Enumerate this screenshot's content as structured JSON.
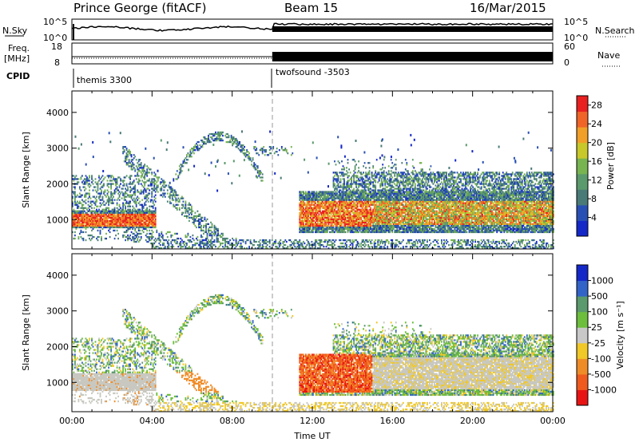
{
  "header": {
    "title": "Prince George (fitACF)",
    "beam": "Beam 15",
    "date": "16/Mar/2015"
  },
  "strip_labels": {
    "nsky": "N.Sky",
    "nsky_hi": "10^5",
    "nsky_lo": "10^0",
    "nsearch": "N.Search",
    "nsearch_hi": "10^5",
    "nsearch_lo": "10^0",
    "freq_line1": "Freq.",
    "freq_line2": "[MHz]",
    "freq_hi": "18",
    "freq_lo": "8",
    "nave": "Nave",
    "nave_hi": "60",
    "nave_lo": "0",
    "cpid": "CPID"
  },
  "cpid_segments": [
    {
      "label": "themis 3300",
      "start": "00:00"
    },
    {
      "label": "twofsound -3503",
      "start": "10:00"
    }
  ],
  "colors": {
    "power_scale": [
      "#1428c8",
      "#2850b4",
      "#4a7a78",
      "#5a9a6c",
      "#78b450",
      "#c8c82a",
      "#f0a028",
      "#f06428",
      "#e82020"
    ],
    "velocity_scale": [
      "#1428c8",
      "#3264c8",
      "#5a9a6c",
      "#6cbe3c",
      "#c8c8c8",
      "#f0c828",
      "#f08c28",
      "#f05a1e",
      "#e81414"
    ],
    "data_gray": "#c8c8c0"
  },
  "chart_data": [
    {
      "type": "heatmap",
      "name": "power",
      "xlabel": "",
      "ylabel": "Slant Range [km]",
      "x_ticks": [
        "00:00",
        "04:00",
        "08:00",
        "12:00",
        "16:00",
        "20:00",
        "00:00"
      ],
      "x_range_hours": [
        0,
        24
      ],
      "y_ticks": [
        1000,
        2000,
        3000,
        4000
      ],
      "ylim": [
        180,
        4600
      ],
      "colorbar": {
        "label": "Power [dB]",
        "ticks": [
          4,
          8,
          12,
          16,
          20,
          24,
          28
        ],
        "range": [
          0,
          30
        ]
      }
    },
    {
      "type": "heatmap",
      "name": "velocity",
      "xlabel": "Time UT",
      "ylabel": "Slant Range [km]",
      "x_ticks": [
        "00:00",
        "04:00",
        "08:00",
        "12:00",
        "16:00",
        "20:00",
        "00:00"
      ],
      "x_range_hours": [
        0,
        24
      ],
      "y_ticks": [
        1000,
        2000,
        3000,
        4000
      ],
      "ylim": [
        180,
        4600
      ],
      "colorbar": {
        "label": "Velocity [m s⁻¹]",
        "ticks": [
          "1000",
          "500",
          "100",
          "25",
          "-25",
          "-100",
          "-500",
          "-1000"
        ]
      }
    }
  ]
}
